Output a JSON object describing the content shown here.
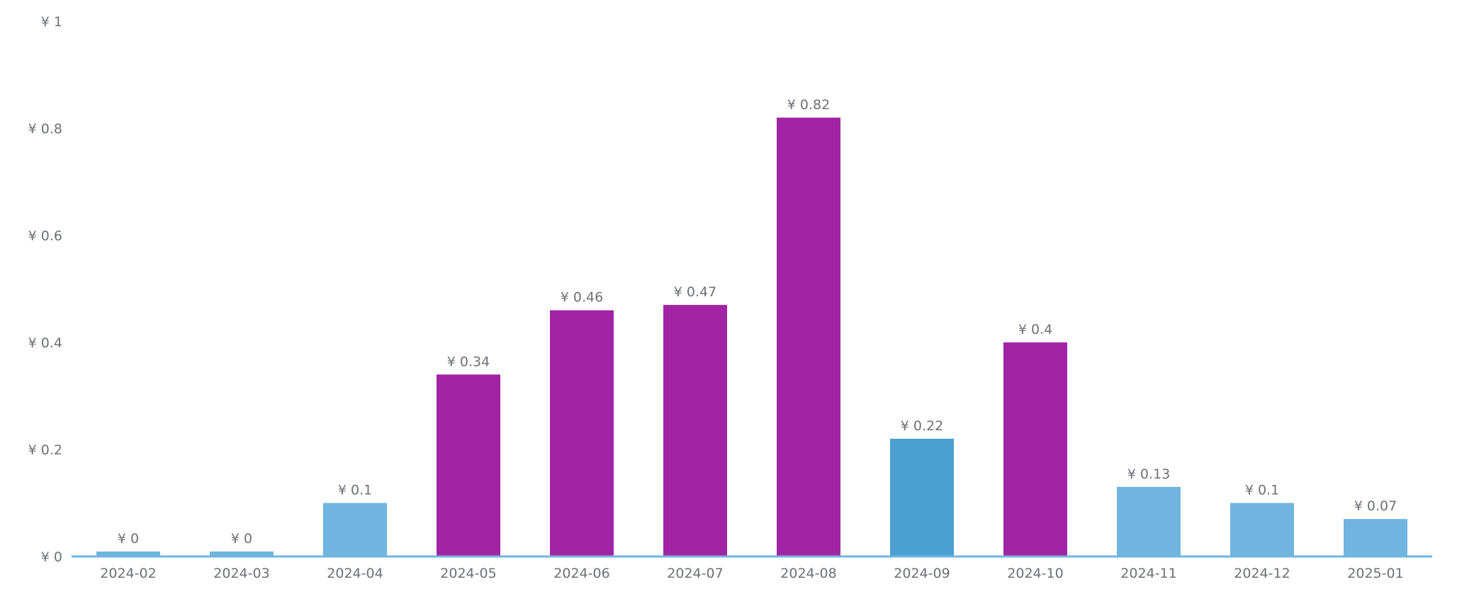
{
  "chart_data": {
    "type": "bar",
    "currency_prefix": "¥",
    "categories": [
      "2024-02",
      "2024-03",
      "2024-04",
      "2024-05",
      "2024-06",
      "2024-07",
      "2024-08",
      "2024-09",
      "2024-10",
      "2024-11",
      "2024-12",
      "2025-01"
    ],
    "values": [
      0,
      0,
      0.1,
      0.34,
      0.46,
      0.47,
      0.82,
      0.22,
      0.4,
      0.13,
      0.1,
      0.07
    ],
    "value_labels": [
      "¥ 0",
      "¥ 0",
      "¥ 0.1",
      "¥ 0.34",
      "¥ 0.46",
      "¥ 0.47",
      "¥ 0.82",
      "¥ 0.22",
      "¥ 0.4",
      "¥ 0.13",
      "¥ 0.1",
      "¥ 0.07"
    ],
    "bar_colors": [
      "#6fb5e0",
      "#6fb5e0",
      "#6fb5e0",
      "#a224a4",
      "#a224a4",
      "#a224a4",
      "#a224a4",
      "#4b9fd1",
      "#a224a4",
      "#6fb5e0",
      "#6fb5e0",
      "#6fb5e0"
    ],
    "y_ticks": [
      0,
      0.2,
      0.4,
      0.6,
      0.8,
      1
    ],
    "y_tick_labels": [
      "¥ 0",
      "¥ 0.2",
      "¥ 0.4",
      "¥ 0.6",
      "¥ 0.8",
      "¥ 1"
    ],
    "ylim": [
      0,
      1
    ],
    "title": "",
    "xlabel": "",
    "ylabel": "",
    "grid": false,
    "legend": "none",
    "axis_color_top": "#a224a4",
    "axis_color_bottom": "#6fb5e0",
    "label_color": "#6e7079"
  }
}
